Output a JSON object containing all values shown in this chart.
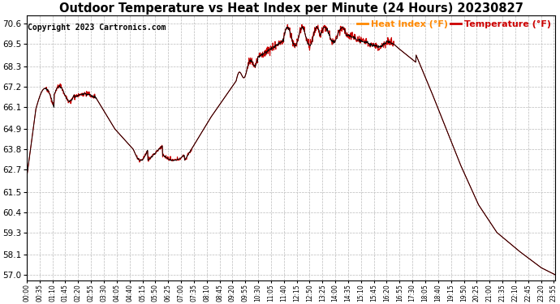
{
  "title": "Outdoor Temperature vs Heat Index per Minute (24 Hours) 20230827",
  "copyright": "Copyright 2023 Cartronics.com",
  "legend_heat_index": "Heat Index (°F)",
  "legend_temperature": "Temperature (°F)",
  "legend_heat_color": "#ff8800",
  "legend_temp_color": "#cc0000",
  "line_color_heat": "#cc0000",
  "line_color_temp": "#000000",
  "yticks": [
    57.0,
    58.1,
    59.3,
    60.4,
    61.5,
    62.7,
    63.8,
    64.9,
    66.1,
    67.2,
    68.3,
    69.5,
    70.6
  ],
  "ymin": 56.7,
  "ymax": 71.05,
  "background_color": "#ffffff",
  "grid_color": "#bbbbbb",
  "title_fontsize": 10.5,
  "copyright_fontsize": 7,
  "xtick_interval_minutes": 35
}
